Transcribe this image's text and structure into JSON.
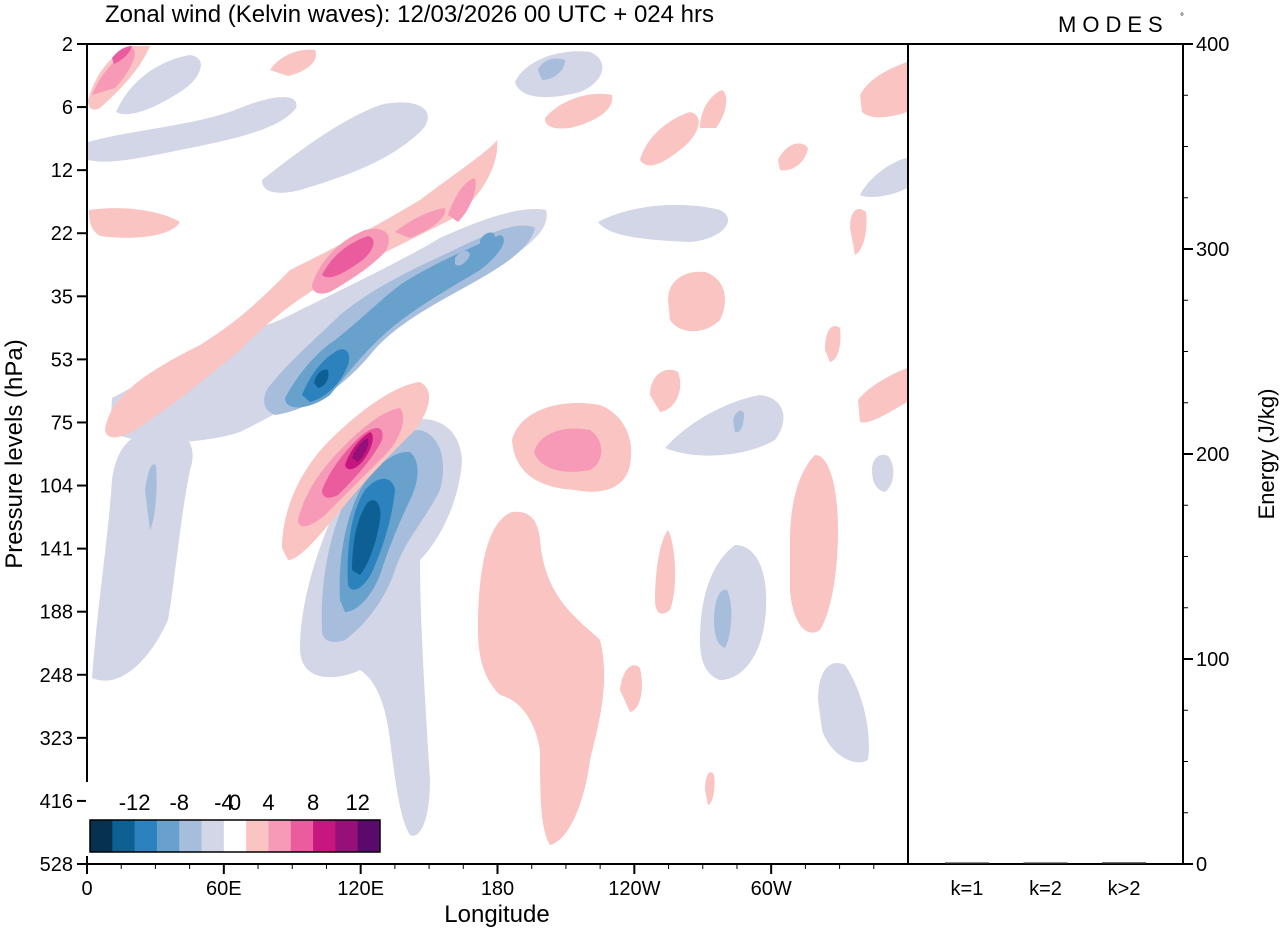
{
  "brand": "MODES",
  "brand_mark": "°",
  "chart_data": [
    {
      "type": "heatmap",
      "title": "Zonal wind (Kelvin waves):  12/03/2026  00 UTC  + 024 hrs",
      "xlabel": "Longitude",
      "ylabel": "Pressure levels (hPa)",
      "x_ticks": [
        "0",
        "60E",
        "120E",
        "180",
        "120W",
        "60W"
      ],
      "x_tick_values_deg": [
        0,
        60,
        120,
        180,
        240,
        300
      ],
      "x_range_deg": [
        0,
        360
      ],
      "y_ticks": [
        "2",
        "6",
        "12",
        "22",
        "35",
        "53",
        "75",
        "104",
        "141",
        "188",
        "248",
        "323",
        "416",
        "528"
      ],
      "y_scale": "log-pressure, inverted (2 hPa at top, 528 hPa at bottom)",
      "colorbar": {
        "labels": [
          "-12",
          "-8",
          "-4",
          "0",
          "4",
          "8",
          "12"
        ],
        "levels": [
          -14,
          -12,
          -10,
          -8,
          -6,
          -4,
          -2,
          2,
          4,
          6,
          8,
          10,
          12,
          14
        ],
        "colors": [
          "#06324f",
          "#0e5f93",
          "#2b82bd",
          "#67a1cc",
          "#a6bddb",
          "#d2d6e6",
          "#ffffff",
          "#f9c4c1",
          "#f79ab8",
          "#ea5c9e",
          "#c8167f",
          "#961079",
          "#5a0a6b"
        ]
      },
      "features": [
        {
          "label": "negative anomaly core",
          "lon_deg": 120,
          "p_hPa": 141,
          "value": -12
        },
        {
          "label": "negative anomaly",
          "lon_deg": 105,
          "p_hPa": 60,
          "value": -10
        },
        {
          "label": "negative band",
          "lon_deg": 160,
          "p_hPa": 25,
          "value": -6
        },
        {
          "label": "positive anomaly core",
          "lon_deg": 115,
          "p_hPa": 90,
          "value": 12
        },
        {
          "label": "positive anomaly",
          "lon_deg": 115,
          "p_hPa": 25,
          "value": 8
        },
        {
          "label": "positive anomaly",
          "lon_deg": 200,
          "p_hPa": 90,
          "value": 6
        },
        {
          "label": "positive plume",
          "lon_deg": 200,
          "p_hPa": 200,
          "value": 3
        }
      ]
    },
    {
      "type": "bar",
      "ylabel": "Energy (J/kg)",
      "categories": [
        "k=1",
        "k=2",
        "k>2"
      ],
      "values": [
        0.3,
        0.2,
        0.8
      ],
      "ylim": [
        0,
        400
      ],
      "y_ticks": [
        "0",
        "100",
        "200",
        "300",
        "400"
      ],
      "y_tick_values": [
        0,
        100,
        200,
        300,
        400
      ]
    }
  ]
}
